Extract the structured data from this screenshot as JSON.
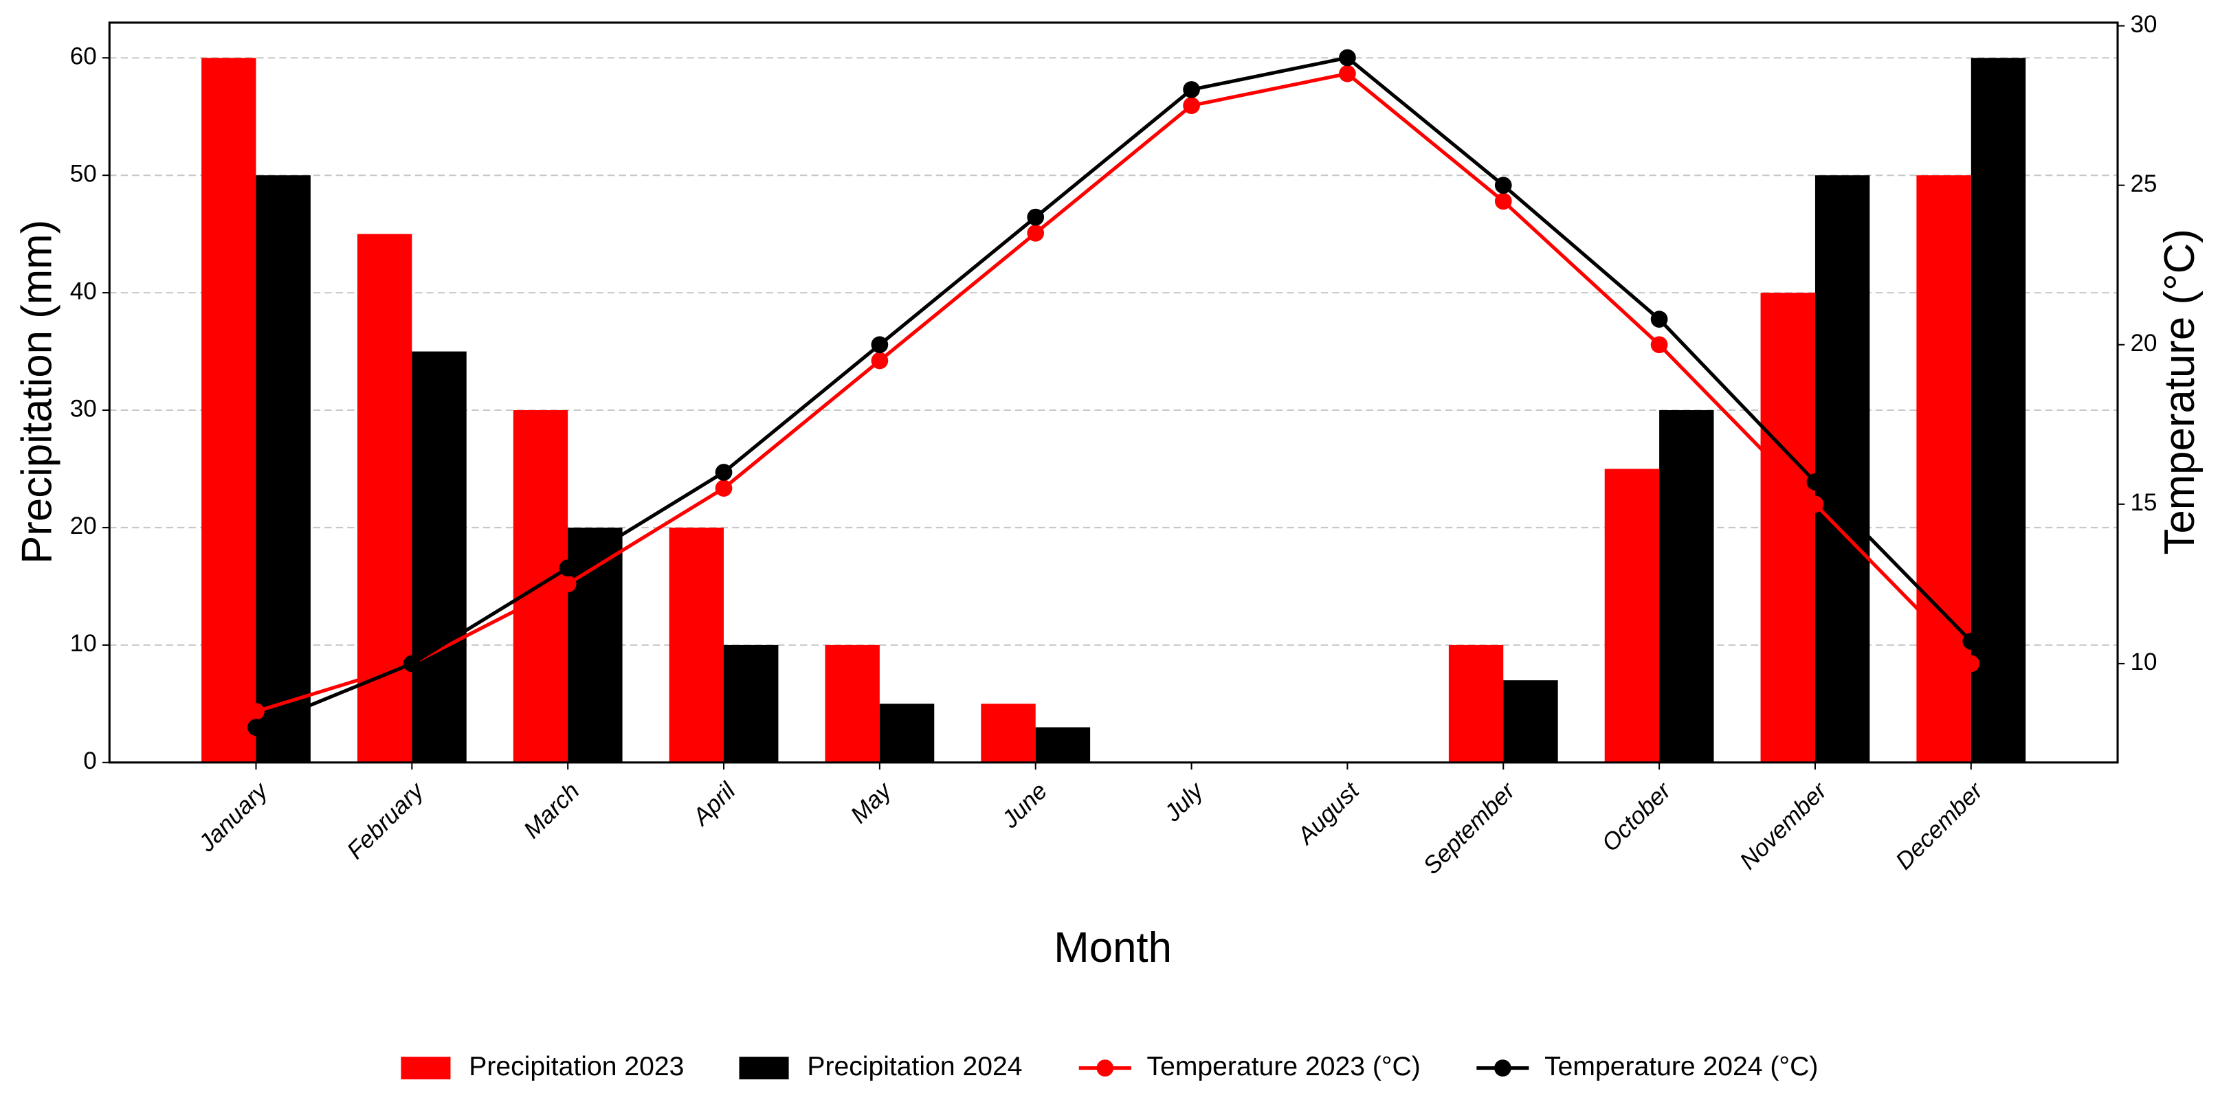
{
  "chart_data": {
    "type": "bar",
    "xlabel": "Month",
    "ylabel": "Precipitation (mm)",
    "y2label": "Temperature (°C)",
    "categories": [
      "January",
      "February",
      "March",
      "April",
      "May",
      "June",
      "July",
      "August",
      "September",
      "October",
      "November",
      "December"
    ],
    "series": [
      {
        "name": "Precipitation 2023",
        "type": "bar",
        "color": "#ff0000",
        "values": [
          60,
          45,
          30,
          20,
          10,
          5,
          0,
          0,
          10,
          25,
          40,
          50
        ]
      },
      {
        "name": "Precipitation 2024",
        "type": "bar",
        "color": "#000000",
        "values": [
          50,
          35,
          20,
          10,
          5,
          3,
          0,
          0,
          7,
          30,
          50,
          60
        ]
      },
      {
        "name": "Temperature 2023 (°C)",
        "type": "line",
        "axis": "y2",
        "color": "#ff0000",
        "values": [
          8.5,
          10,
          12.5,
          15.5,
          19.5,
          23.5,
          27.5,
          28.5,
          24.5,
          20,
          15,
          10
        ]
      },
      {
        "name": "Temperature 2024 (°C)",
        "type": "line",
        "axis": "y2",
        "color": "#000000",
        "values": [
          8,
          10,
          13,
          16,
          20,
          24,
          28,
          29,
          25,
          20.8,
          15.7,
          10.7
        ]
      }
    ],
    "ylim": [
      0,
      63
    ],
    "yticks": [
      0,
      10,
      20,
      30,
      40,
      50,
      60
    ],
    "y2lim": [
      6.9,
      30.1
    ],
    "y2ticks": [
      10,
      15,
      20,
      25,
      30
    ],
    "grid": true,
    "legend": "bottom"
  }
}
